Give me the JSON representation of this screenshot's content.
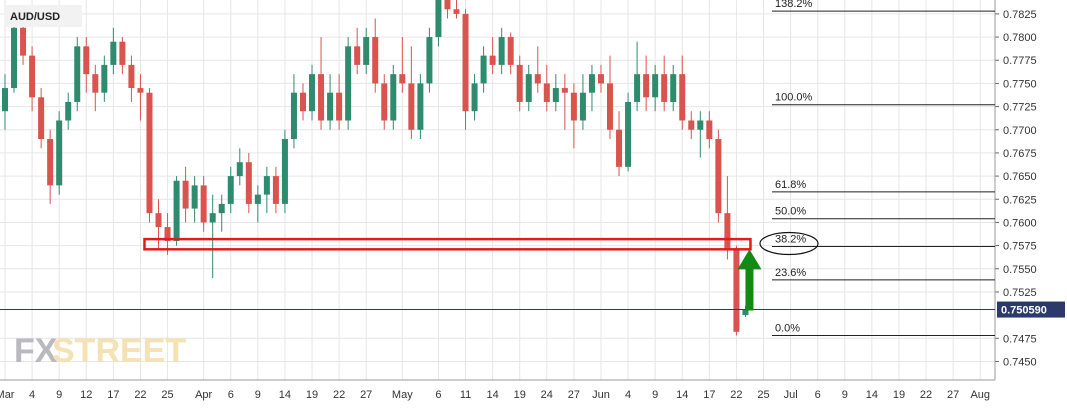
{
  "chart_data": {
    "type": "candlestick",
    "symbol": "AUD/USD",
    "ylim": [
      0.743,
      0.784
    ],
    "y_ticks": [
      "0.7825",
      "0.7800",
      "0.7775",
      "0.7750",
      "0.7725",
      "0.7700",
      "0.7675",
      "0.7650",
      "0.7625",
      "0.7600",
      "0.7575",
      "0.7550",
      "0.7525",
      "0.7475",
      "0.7450"
    ],
    "x_labels": [
      {
        "label": "Mar",
        "bar": 0
      },
      {
        "label": "4",
        "bar": 3
      },
      {
        "label": "9",
        "bar": 6
      },
      {
        "label": "12",
        "bar": 9
      },
      {
        "label": "17",
        "bar": 12
      },
      {
        "label": "22",
        "bar": 15
      },
      {
        "label": "25",
        "bar": 18
      },
      {
        "label": "Apr",
        "bar": 22
      },
      {
        "label": "6",
        "bar": 25
      },
      {
        "label": "9",
        "bar": 28
      },
      {
        "label": "14",
        "bar": 31
      },
      {
        "label": "19",
        "bar": 34
      },
      {
        "label": "22",
        "bar": 37
      },
      {
        "label": "27",
        "bar": 40
      },
      {
        "label": "May",
        "bar": 44
      },
      {
        "label": "6",
        "bar": 48
      },
      {
        "label": "11",
        "bar": 51
      },
      {
        "label": "14",
        "bar": 54
      },
      {
        "label": "19",
        "bar": 57
      },
      {
        "label": "24",
        "bar": 60
      },
      {
        "label": "27",
        "bar": 63
      },
      {
        "label": "Jun",
        "bar": 66
      },
      {
        "label": "4",
        "bar": 69
      },
      {
        "label": "9",
        "bar": 72
      },
      {
        "label": "14",
        "bar": 75
      },
      {
        "label": "17",
        "bar": 78
      },
      {
        "label": "22",
        "bar": 81
      },
      {
        "label": "25",
        "bar": 84
      },
      {
        "label": "Jul",
        "bar": 87
      },
      {
        "label": "6",
        "bar": 90
      },
      {
        "label": "9",
        "bar": 93
      },
      {
        "label": "14",
        "bar": 96
      },
      {
        "label": "19",
        "bar": 99
      },
      {
        "label": "22",
        "bar": 102
      },
      {
        "label": "27",
        "bar": 105
      },
      {
        "label": "Aug",
        "bar": 108
      }
    ],
    "candles": [
      [
        0.772,
        0.776,
        0.77,
        0.7745
      ],
      [
        0.7745,
        0.782,
        0.774,
        0.781
      ],
      [
        0.781,
        0.783,
        0.777,
        0.778
      ],
      [
        0.778,
        0.779,
        0.772,
        0.7735
      ],
      [
        0.7735,
        0.7745,
        0.768,
        0.769
      ],
      [
        0.769,
        0.77,
        0.762,
        0.764
      ],
      [
        0.764,
        0.772,
        0.763,
        0.771
      ],
      [
        0.771,
        0.774,
        0.77,
        0.773
      ],
      [
        0.773,
        0.78,
        0.772,
        0.779
      ],
      [
        0.779,
        0.78,
        0.774,
        0.776
      ],
      [
        0.776,
        0.777,
        0.772,
        0.774
      ],
      [
        0.774,
        0.778,
        0.773,
        0.777
      ],
      [
        0.777,
        0.781,
        0.776,
        0.7795
      ],
      [
        0.7795,
        0.78,
        0.776,
        0.777
      ],
      [
        0.777,
        0.778,
        0.773,
        0.7745
      ],
      [
        0.7745,
        0.776,
        0.771,
        0.774
      ],
      [
        0.774,
        0.7745,
        0.76,
        0.761
      ],
      [
        0.761,
        0.7625,
        0.757,
        0.7595
      ],
      [
        0.7595,
        0.761,
        0.7565,
        0.758
      ],
      [
        0.758,
        0.765,
        0.7575,
        0.7645
      ],
      [
        0.7645,
        0.766,
        0.76,
        0.7615
      ],
      [
        0.7615,
        0.765,
        0.76,
        0.764
      ],
      [
        0.764,
        0.765,
        0.759,
        0.76
      ],
      [
        0.76,
        0.763,
        0.754,
        0.761
      ],
      [
        0.761,
        0.763,
        0.759,
        0.762
      ],
      [
        0.762,
        0.766,
        0.761,
        0.765
      ],
      [
        0.765,
        0.768,
        0.764,
        0.7665
      ],
      [
        0.7665,
        0.7675,
        0.761,
        0.762
      ],
      [
        0.762,
        0.764,
        0.76,
        0.763
      ],
      [
        0.763,
        0.766,
        0.761,
        0.765
      ],
      [
        0.765,
        0.766,
        0.761,
        0.762
      ],
      [
        0.762,
        0.77,
        0.761,
        0.769
      ],
      [
        0.769,
        0.776,
        0.768,
        0.774
      ],
      [
        0.774,
        0.775,
        0.771,
        0.772
      ],
      [
        0.772,
        0.777,
        0.771,
        0.776
      ],
      [
        0.776,
        0.78,
        0.77,
        0.771
      ],
      [
        0.771,
        0.776,
        0.77,
        0.774
      ],
      [
        0.774,
        0.776,
        0.77,
        0.771
      ],
      [
        0.771,
        0.78,
        0.77,
        0.779
      ],
      [
        0.779,
        0.781,
        0.776,
        0.777
      ],
      [
        0.777,
        0.781,
        0.776,
        0.78
      ],
      [
        0.78,
        0.782,
        0.774,
        0.775
      ],
      [
        0.775,
        0.776,
        0.77,
        0.771
      ],
      [
        0.771,
        0.777,
        0.77,
        0.776
      ],
      [
        0.776,
        0.78,
        0.774,
        0.775
      ],
      [
        0.775,
        0.779,
        0.769,
        0.77
      ],
      [
        0.77,
        0.776,
        0.769,
        0.775
      ],
      [
        0.775,
        0.781,
        0.774,
        0.78
      ],
      [
        0.78,
        0.785,
        0.779,
        0.784
      ],
      [
        0.784,
        0.785,
        0.782,
        0.783
      ],
      [
        0.783,
        0.7845,
        0.782,
        0.7825
      ],
      [
        0.7825,
        0.783,
        0.77,
        0.772
      ],
      [
        0.772,
        0.776,
        0.771,
        0.775
      ],
      [
        0.775,
        0.779,
        0.774,
        0.778
      ],
      [
        0.778,
        0.78,
        0.776,
        0.777
      ],
      [
        0.777,
        0.781,
        0.776,
        0.78
      ],
      [
        0.78,
        0.7805,
        0.776,
        0.777
      ],
      [
        0.777,
        0.778,
        0.772,
        0.773
      ],
      [
        0.773,
        0.777,
        0.772,
        0.776
      ],
      [
        0.776,
        0.779,
        0.774,
        0.775
      ],
      [
        0.775,
        0.777,
        0.772,
        0.773
      ],
      [
        0.773,
        0.776,
        0.772,
        0.7745
      ],
      [
        0.7745,
        0.776,
        0.77,
        0.774
      ],
      [
        0.774,
        0.775,
        0.768,
        0.771
      ],
      [
        0.771,
        0.776,
        0.77,
        0.774
      ],
      [
        0.774,
        0.777,
        0.772,
        0.776
      ],
      [
        0.776,
        0.777,
        0.774,
        0.775
      ],
      [
        0.775,
        0.778,
        0.769,
        0.77
      ],
      [
        0.77,
        0.772,
        0.765,
        0.766
      ],
      [
        0.766,
        0.774,
        0.7655,
        0.773
      ],
      [
        0.773,
        0.7795,
        0.772,
        0.776
      ],
      [
        0.776,
        0.778,
        0.772,
        0.7735
      ],
      [
        0.7735,
        0.777,
        0.772,
        0.776
      ],
      [
        0.776,
        0.778,
        0.772,
        0.773
      ],
      [
        0.773,
        0.777,
        0.772,
        0.776
      ],
      [
        0.776,
        0.778,
        0.77,
        0.771
      ],
      [
        0.771,
        0.772,
        0.769,
        0.77
      ],
      [
        0.77,
        0.772,
        0.767,
        0.771
      ],
      [
        0.771,
        0.772,
        0.768,
        0.769
      ],
      [
        0.769,
        0.77,
        0.76,
        0.761
      ],
      [
        0.761,
        0.765,
        0.756,
        0.757
      ],
      [
        0.757,
        0.7575,
        0.7478,
        0.7482
      ],
      [
        0.75,
        0.751,
        0.7498,
        0.7506
      ]
    ],
    "fibonacci": [
      {
        "label": "138.2%",
        "value": 0.7828
      },
      {
        "label": "100.0%",
        "value": 0.7727
      },
      {
        "label": "61.8%",
        "value": 0.7633
      },
      {
        "label": "50.0%",
        "value": 0.7604
      },
      {
        "label": "38.2%",
        "value": 0.7574
      },
      {
        "label": "23.6%",
        "value": 0.7538
      },
      {
        "label": "0.0%",
        "value": 0.7478
      }
    ],
    "current_price": {
      "label": "0.750590",
      "value": 0.7506
    },
    "support_zone": {
      "from_bar": 16,
      "to_bar": 82,
      "low": 0.7571,
      "high": 0.7582
    },
    "arrow": {
      "direction": "up",
      "bar": 82,
      "base_value": 0.7505,
      "tip_value": 0.7571
    },
    "highlighted_level": "38.2%",
    "colors": {
      "bullish": "#2e8b6e",
      "bearish": "#d9534f",
      "grid": "#e6e6e6",
      "fib_line": "#222222",
      "price_line": "#2b3a6b",
      "price_bg": "#2b3a6b",
      "zone": "#e31b1b",
      "arrow": "#138a13"
    }
  },
  "logo": {
    "fx": "FX",
    "street": "STREET"
  }
}
